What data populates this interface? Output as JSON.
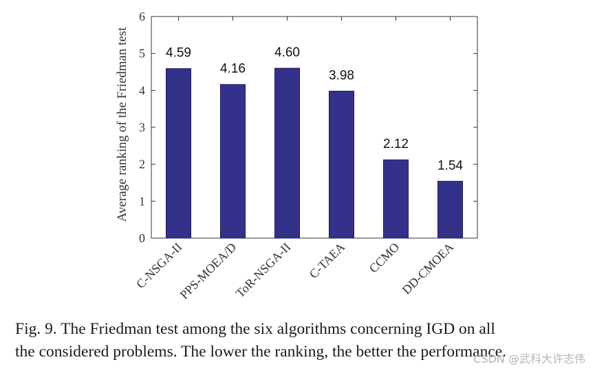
{
  "chart_data": {
    "type": "bar",
    "categories": [
      "C-NSGA-II",
      "PPS-MOEA/D",
      "ToR-NSGA-II",
      "C-TAEA",
      "CCMO",
      "DD-CMOEA"
    ],
    "values": [
      4.59,
      4.16,
      4.6,
      3.98,
      2.12,
      1.54
    ],
    "data_labels": [
      "4.59",
      "4.16",
      "4.60",
      "3.98",
      "2.12",
      "1.54"
    ],
    "title": "",
    "xlabel": "",
    "ylabel": "Average ranking of the Friedman test",
    "ylim": [
      0,
      6
    ],
    "yticks": [
      0,
      1,
      2,
      3,
      4,
      5,
      6
    ],
    "bar_color": "#33318a",
    "grid": false,
    "legend": "none"
  },
  "caption": {
    "line1": "Fig. 9.  The Friedman test among the six algorithms concerning IGD on all",
    "line2": "the considered problems. The lower the ranking, the better the performance."
  },
  "watermark": "CSDN @武科大许志伟"
}
